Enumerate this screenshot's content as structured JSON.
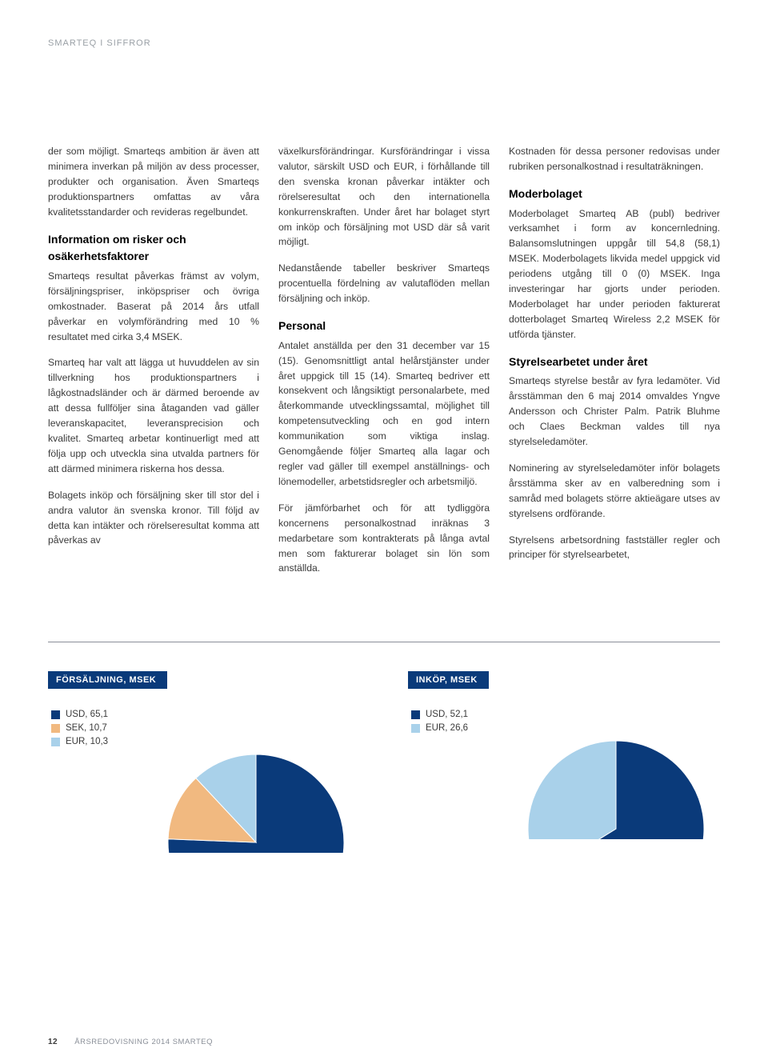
{
  "header": "SMARTEQ I SIFFROR",
  "footer": {
    "page": "12",
    "text": "ÅRSREDOVISNING 2014 SMARTEQ"
  },
  "col1": {
    "p1": "der som möjligt. Smarteqs ambition är även att minimera inverkan på miljön av dess processer, produkter och organisation. Även Smarteqs produktionspartners omfattas av våra kvalitetsstandarder och revideras regelbundet.",
    "h1": "Information om risker och osäkerhetsfaktorer",
    "p2": "Smarteqs resultat påverkas främst av volym, försäljningspriser, inköpspriser och övriga omkostnader. Baserat på 2014 års utfall påverkar en volymförändring med 10 % resultatet med cirka 3,4 MSEK.",
    "p3": "Smarteq har valt att lägga ut huvuddelen av sin tillverkning hos produktionspartners i lågkostnadsländer och är därmed beroende av att dessa fullföljer sina åtaganden vad gäller leveranskapacitet, leveransprecision och kvalitet. Smarteq arbetar kontinuerligt med att följa upp och utveckla sina utvalda partners för att därmed minimera riskerna hos dessa.",
    "p4": "Bolagets inköp och försäljning sker till stor del i andra valutor än svenska kronor. Till följd av detta kan intäkter och rörelseresultat komma att påverkas av"
  },
  "col2": {
    "p1": "växelkursförändringar. Kursförändringar i vissa valutor, särskilt USD och EUR, i förhållande till den svenska kronan påverkar intäkter och rörelseresultat och den internationella konkurrenskraften. Under året har bolaget styrt om inköp och försäljning mot USD där så varit möjligt.",
    "p2": "Nedanstående tabeller beskriver Smarteqs procentuella fördelning av valutaflöden mellan försäljning och inköp.",
    "h1": "Personal",
    "p3": "Antalet anställda per den 31 december var 15 (15). Genomsnittligt antal helårstjänster under året uppgick till 15 (14). Smarteq bedriver ett konsekvent och långsiktigt personalarbete, med återkommande utvecklingssamtal, möjlighet till kompetensutveckling och en god intern kommunikation som viktiga inslag. Genomgående följer Smarteq alla lagar och regler vad gäller till exempel anställnings- och lönemodeller, arbetstidsregler och arbetsmiljö.",
    "p4": "För jämförbarhet och för att tydliggöra koncernens personalkostnad inräknas 3 medarbetare som kontrakterats på långa avtal men som fakturerar bolaget sin lön som anställda."
  },
  "col3": {
    "p1": "Kostnaden för dessa personer redovisas under rubriken personalkostnad i resultaträkningen.",
    "h1": "Moderbolaget",
    "p2": "Moderbolaget Smarteq AB (publ) bedriver verksamhet i form av koncernledning. Balansomslutningen uppgår till 54,8 (58,1) MSEK. Moderbolagets likvida medel uppgick vid periodens utgång till 0 (0) MSEK. Inga investeringar har gjorts under perioden. Moderbolaget har under perioden fakturerat dotterbolaget Smarteq Wireless 2,2 MSEK för utförda tjänster.",
    "h2": "Styrelsearbetet under året",
    "p3": "Smarteqs styrelse består av fyra ledamöter. Vid årsstämman den 6 maj 2014 omvaldes Yngve Andersson och Christer Palm. Patrik Bluhme och Claes Beckman valdes till nya styrelseledamöter.",
    "p4": "Nominering av styrelseledamöter inför bolagets årsstämma sker av en valberedning som i samråd med bolagets större aktieägare utses av styrelsens ordförande.",
    "p5": "Styrelsens arbetsordning fastställer regler och principer för styrelsearbetet,"
  },
  "chart1": {
    "title": "FÖRSÄLJNING, MSEK",
    "legend": [
      {
        "label": "USD, 65,1",
        "color": "#0a3a7a"
      },
      {
        "label": "SEK, 10,7",
        "color": "#f1b980"
      },
      {
        "label": "EUR, 10,3",
        "color": "#a9d1ea"
      }
    ],
    "slices": [
      {
        "value": 65.1,
        "color": "#0a3a7a"
      },
      {
        "value": 10.7,
        "color": "#f1b980"
      },
      {
        "value": 10.3,
        "color": "#a9d1ea"
      }
    ],
    "radius": 110,
    "startAngle": -90
  },
  "chart2": {
    "title": "INKÖP, MSEK",
    "legend": [
      {
        "label": "USD, 52,1",
        "color": "#0a3a7a"
      },
      {
        "label": "EUR, 26,6",
        "color": "#a9d1ea"
      }
    ],
    "slices": [
      {
        "value": 52.1,
        "color": "#0a3a7a"
      },
      {
        "value": 26.6,
        "color": "#a9d1ea"
      }
    ],
    "radius": 110,
    "startAngle": -90
  }
}
